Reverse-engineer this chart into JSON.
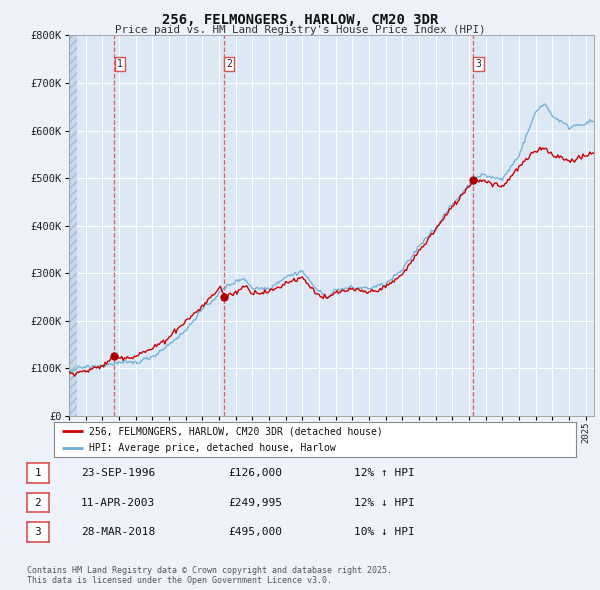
{
  "title": "256, FELMONGERS, HARLOW, CM20 3DR",
  "subtitle": "Price paid vs. HM Land Registry's House Price Index (HPI)",
  "background_color": "#eef2fa",
  "plot_bg_color": "#dde8f5",
  "ylim": [
    0,
    800000
  ],
  "yticks": [
    0,
    100000,
    200000,
    300000,
    400000,
    500000,
    600000,
    700000,
    800000
  ],
  "ytick_labels": [
    "£0",
    "£100K",
    "£200K",
    "£300K",
    "£400K",
    "£500K",
    "£600K",
    "£700K",
    "£800K"
  ],
  "sale_dates_dec": [
    1996.729,
    2003.276,
    2018.247
  ],
  "sale_prices": [
    126000,
    249995,
    495000
  ],
  "sale_numbers": [
    1,
    2,
    3
  ],
  "legend_property": "256, FELMONGERS, HARLOW, CM20 3DR (detached house)",
  "legend_hpi": "HPI: Average price, detached house, Harlow",
  "table_data": [
    {
      "num": 1,
      "date": "23-SEP-1996",
      "price": "£126,000",
      "hpi": "12% ↑ HPI"
    },
    {
      "num": 2,
      "date": "11-APR-2003",
      "price": "£249,995",
      "hpi": "12% ↓ HPI"
    },
    {
      "num": 3,
      "date": "28-MAR-2018",
      "price": "£495,000",
      "hpi": "10% ↓ HPI"
    }
  ],
  "footer": "Contains HM Land Registry data © Crown copyright and database right 2025.\nThis data is licensed under the Open Government Licence v3.0.",
  "hpi_color": "#6baed6",
  "price_color": "#cc0000",
  "vline_color": "#e05050",
  "dot_color": "#aa0000",
  "xmin": 1994.0,
  "xmax": 2025.5,
  "hatch_end": 1994.5
}
